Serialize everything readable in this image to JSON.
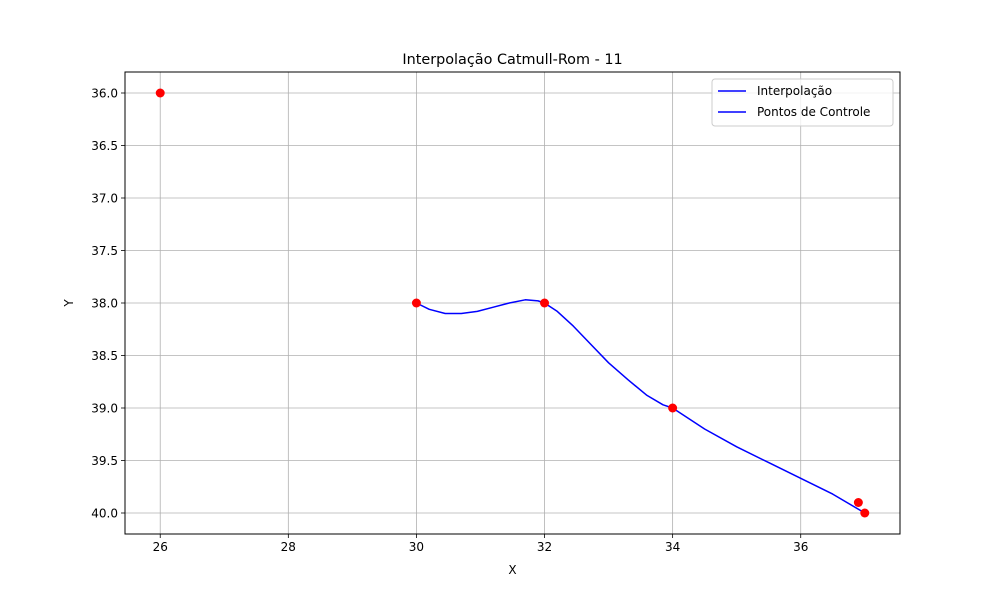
{
  "chart_data": {
    "type": "line",
    "title": "Interpolação Catmull-Rom - 11",
    "xlabel": "X",
    "ylabel": "Y",
    "xlim": [
      25.45,
      37.55
    ],
    "ylim": [
      40.2,
      35.8
    ],
    "y_inverted": true,
    "grid": true,
    "legend_position": "top-right",
    "x_ticks": [
      26,
      28,
      30,
      32,
      34,
      36
    ],
    "x_tick_labels": [
      "26",
      "28",
      "30",
      "32",
      "34",
      "36"
    ],
    "y_ticks": [
      36.0,
      36.5,
      37.0,
      37.5,
      38.0,
      38.5,
      39.0,
      39.5,
      40.0
    ],
    "y_tick_labels": [
      "36.0",
      "36.5",
      "37.0",
      "37.5",
      "38.0",
      "38.5",
      "39.0",
      "39.5",
      "40.0"
    ],
    "legend": [
      "Interpolação",
      "Pontos de Controle"
    ],
    "series": [
      {
        "name": "Interpolação",
        "color": "#0000ff",
        "style": "line",
        "x": [
          30.0,
          30.2,
          30.45,
          30.7,
          30.95,
          31.2,
          31.45,
          31.7,
          31.9,
          32.0,
          32.2,
          32.45,
          32.7,
          33.0,
          33.3,
          33.6,
          33.85,
          34.0,
          34.5,
          35.0,
          35.5,
          36.0,
          36.5,
          37.0
        ],
        "y": [
          38.0,
          38.06,
          38.1,
          38.1,
          38.08,
          38.04,
          38.0,
          37.97,
          37.98,
          38.0,
          38.08,
          38.22,
          38.38,
          38.57,
          38.73,
          38.88,
          38.97,
          39.0,
          39.2,
          39.37,
          39.52,
          39.67,
          39.82,
          40.0
        ]
      },
      {
        "name": "Pontos de Controle",
        "color": "#ff0000",
        "style": "markers",
        "x": [
          26,
          30,
          32,
          34,
          36.9,
          37
        ],
        "y": [
          36.0,
          38.0,
          38.0,
          39.0,
          39.9,
          40.0
        ]
      }
    ]
  }
}
